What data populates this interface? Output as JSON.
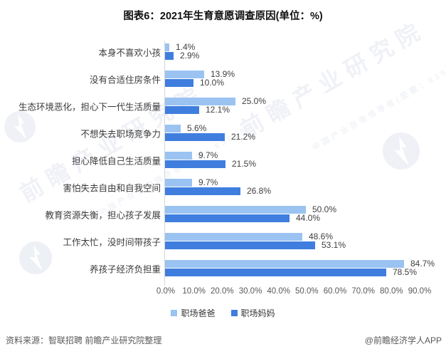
{
  "chart_data": {
    "type": "bar",
    "orientation": "horizontal-grouped",
    "title": "图表6：2021年生育意愿调查原因(单位：%)",
    "categories": [
      "本身不喜欢小孩",
      "没有合适住房条件",
      "生态环境恶化，担心下一代生活质量",
      "不想失去职场竞争力",
      "担心降低自己生活质量",
      "害怕失去自由和自我空间",
      "教育资源失衡，担心孩子发展",
      "工作太忙，没时间带孩子",
      "养孩子经济负担重"
    ],
    "series": [
      {
        "name": "职场爸爸",
        "color": "#9AC3F2",
        "values": [
          1.4,
          13.9,
          25.0,
          5.6,
          9.7,
          9.7,
          50.0,
          48.6,
          84.7
        ]
      },
      {
        "name": "职场妈妈",
        "color": "#3F7EDE",
        "values": [
          2.9,
          10.0,
          12.1,
          21.2,
          21.5,
          26.8,
          44.0,
          53.1,
          78.5
        ]
      }
    ],
    "x_axis": {
      "min": 0,
      "max": 90,
      "tick_step": 10,
      "tick_labels": [
        "0.0%",
        "10.0%",
        "20.0%",
        "30.0%",
        "40.0%",
        "50.0%",
        "60.0%",
        "70.0%",
        "80.0%",
        "90.0%"
      ]
    },
    "value_suffix": "%",
    "grid": false,
    "legend_position": "bottom"
  },
  "footer": {
    "source": "资料来源：智联招聘 前瞻产业研究院整理",
    "credit": "@前瞻经济学人APP"
  },
  "watermark": {
    "brand": "前瞻产业研究院",
    "tagline": "中国产业咨询领导者(股票：839599)"
  }
}
